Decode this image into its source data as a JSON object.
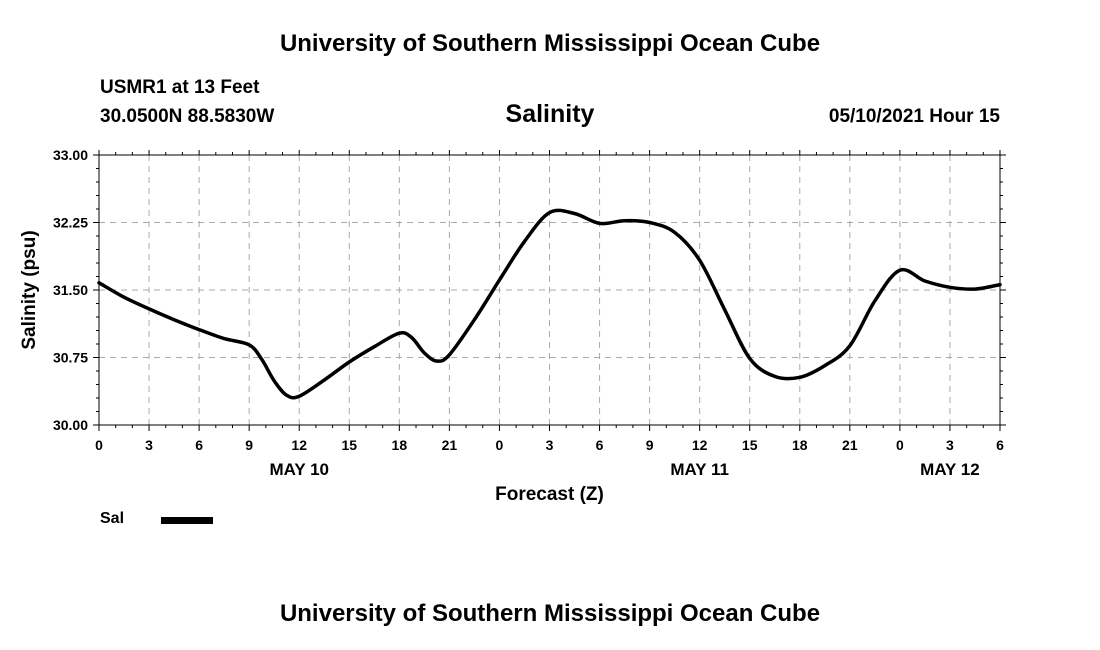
{
  "header": {
    "title": "University of Southern Mississippi Ocean Cube",
    "station": "USMR1 at 13 Feet",
    "coords": "30.0500N  88.5830W",
    "plot_title": "Salinity",
    "run_time": "05/10/2021 Hour 15"
  },
  "footer": {
    "title": "University of Southern Mississippi Ocean Cube"
  },
  "legend": {
    "label": "Sal",
    "color": "#000000"
  },
  "chart_data": {
    "type": "line",
    "title": "Salinity",
    "xlabel": "Forecast (Z)",
    "ylabel": "Salinity (psu)",
    "ylim": [
      30.0,
      33.0
    ],
    "yticks": [
      "30.00",
      "30.75",
      "31.50",
      "32.25",
      "33.00"
    ],
    "xlim": [
      0,
      54
    ],
    "xticks": [
      {
        "hour": 0,
        "label": "0"
      },
      {
        "hour": 3,
        "label": "3"
      },
      {
        "hour": 6,
        "label": "6"
      },
      {
        "hour": 9,
        "label": "9"
      },
      {
        "hour": 12,
        "label": "12"
      },
      {
        "hour": 15,
        "label": "15"
      },
      {
        "hour": 18,
        "label": "18"
      },
      {
        "hour": 21,
        "label": "21"
      },
      {
        "hour": 24,
        "label": "0"
      },
      {
        "hour": 27,
        "label": "3"
      },
      {
        "hour": 30,
        "label": "6"
      },
      {
        "hour": 33,
        "label": "9"
      },
      {
        "hour": 36,
        "label": "12"
      },
      {
        "hour": 39,
        "label": "15"
      },
      {
        "hour": 42,
        "label": "18"
      },
      {
        "hour": 45,
        "label": "21"
      },
      {
        "hour": 48,
        "label": "0"
      },
      {
        "hour": 51,
        "label": "3"
      },
      {
        "hour": 54,
        "label": "6"
      }
    ],
    "date_labels": [
      {
        "hour": 12,
        "label": "MAY 10"
      },
      {
        "hour": 36,
        "label": "MAY 11"
      },
      {
        "hour": 51,
        "label": "MAY 12"
      }
    ],
    "grid": true,
    "series": [
      {
        "name": "Sal",
        "x": [
          0,
          1.5,
          3,
          4.5,
          6,
          7.5,
          9,
          9.75,
          10.5,
          11.25,
          12,
          13.5,
          15,
          16.5,
          18,
          18.75,
          19.5,
          20.25,
          21,
          22.5,
          24,
          25.5,
          27,
          28.5,
          30,
          31.5,
          33,
          34.5,
          36,
          37.5,
          39,
          40.5,
          42,
          43.5,
          45,
          46.5,
          48,
          49.5,
          51,
          52.5,
          54
        ],
        "y": [
          31.58,
          31.42,
          31.29,
          31.17,
          31.06,
          30.96,
          30.89,
          30.73,
          30.49,
          30.33,
          30.32,
          30.5,
          30.7,
          30.87,
          31.02,
          30.97,
          30.8,
          30.71,
          30.78,
          31.17,
          31.61,
          32.04,
          32.36,
          32.35,
          32.24,
          32.27,
          32.25,
          32.14,
          31.83,
          31.28,
          30.74,
          30.54,
          30.53,
          30.66,
          30.88,
          31.38,
          31.72,
          31.6,
          31.53,
          31.51,
          31.56
        ]
      }
    ]
  }
}
